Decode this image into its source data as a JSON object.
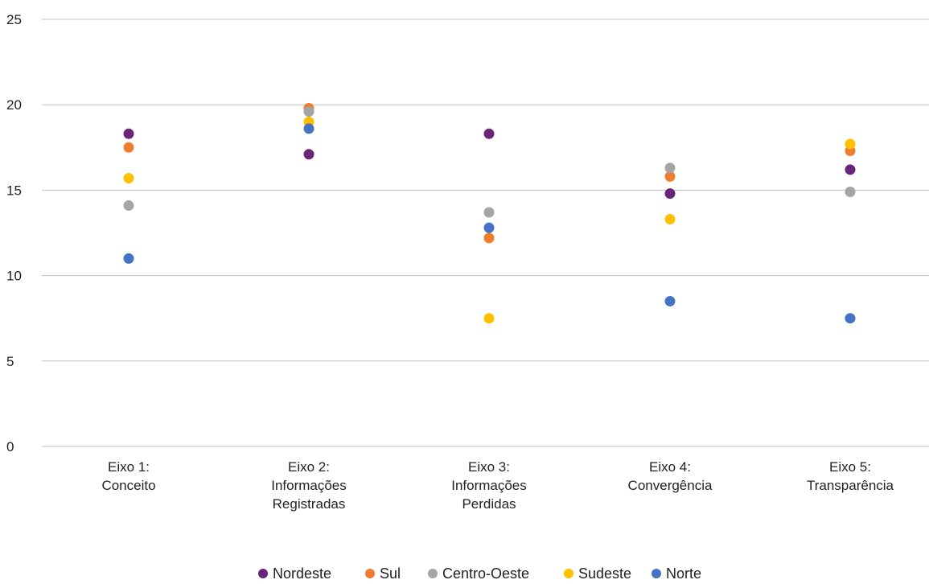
{
  "chart_data": {
    "type": "scatter",
    "categories": [
      [
        "Eixo 1:",
        "Conceito"
      ],
      [
        "Eixo 2:",
        "Informações",
        "Registradas"
      ],
      [
        "Eixo 3:",
        "Informações",
        "Perdidas"
      ],
      [
        "Eixo 4:",
        "Convergência"
      ],
      [
        "Eixo 5:",
        "Transparência"
      ]
    ],
    "ylim": [
      0,
      25
    ],
    "yticks": [
      0,
      5,
      10,
      15,
      20,
      25
    ],
    "grid": true,
    "legend_position": "bottom",
    "series": [
      {
        "name": "Nordeste",
        "color": "#68257a",
        "values": [
          18.3,
          17.1,
          18.3,
          14.8,
          16.2
        ]
      },
      {
        "name": "Sul",
        "color": "#ed7d31",
        "values": [
          17.5,
          19.8,
          12.2,
          15.8,
          17.3
        ]
      },
      {
        "name": "Centro-Oeste",
        "color": "#a5a5a5",
        "values": [
          14.1,
          19.6,
          13.7,
          16.3,
          14.9
        ]
      },
      {
        "name": "Sudeste",
        "color": "#ffc000",
        "values": [
          15.7,
          19.0,
          7.5,
          13.3,
          17.7
        ]
      },
      {
        "name": "Norte",
        "color": "#4472c4",
        "values": [
          11.0,
          18.6,
          12.8,
          8.5,
          7.5
        ]
      }
    ]
  }
}
